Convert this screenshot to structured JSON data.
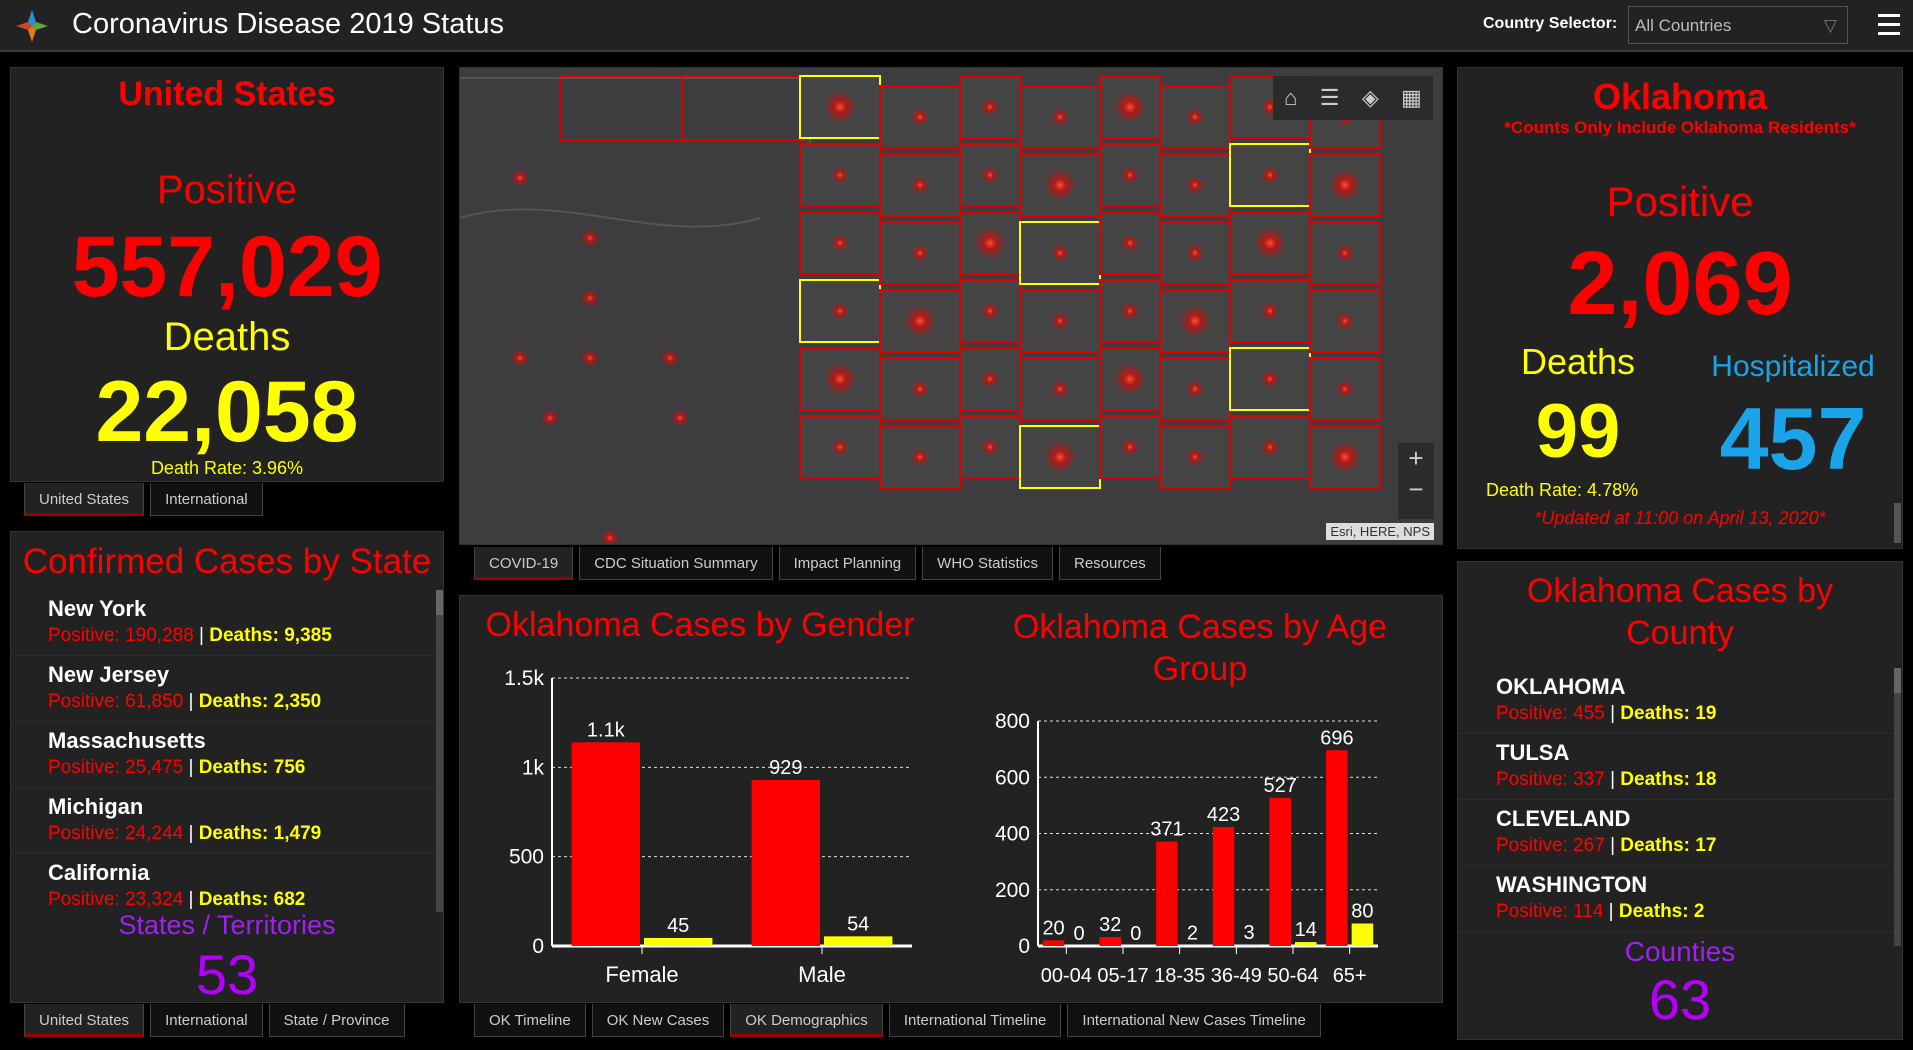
{
  "header": {
    "title": "Coronavirus Disease 2019 Status",
    "country_selector_label": "Country Selector:",
    "country_selector_value": "All Countries"
  },
  "us_panel": {
    "title": "United States",
    "positive_label": "Positive",
    "positive": "557,029",
    "deaths_label": "Deaths",
    "deaths": "22,058",
    "death_rate": "Death Rate: 3.96%",
    "tabs": [
      "United States",
      "International"
    ]
  },
  "state_panel": {
    "title": "Confirmed Cases by State",
    "items": [
      {
        "name": "New York",
        "positive": "Positive: 190,288",
        "deaths": "Deaths: 9,385"
      },
      {
        "name": "New Jersey",
        "positive": "Positive: 61,850",
        "deaths": "Deaths: 2,350"
      },
      {
        "name": "Massachusetts",
        "positive": "Positive: 25,475",
        "deaths": "Deaths: 756"
      },
      {
        "name": "Michigan",
        "positive": "Positive: 24,244",
        "deaths": "Deaths: 1,479"
      },
      {
        "name": "California",
        "positive": "Positive: 23,324",
        "deaths": "Deaths: 682"
      }
    ],
    "count_label": "States / Territories",
    "count": "53",
    "tabs": [
      "United States",
      "International",
      "State / Province"
    ]
  },
  "map": {
    "attribution": "Esri, HERE, NPS",
    "zoom_in": "+",
    "zoom_out": "−",
    "tabs": [
      "COVID-19",
      "CDC Situation Summary",
      "Impact Planning",
      "WHO Statistics",
      "Resources"
    ]
  },
  "ok_panel": {
    "title": "Oklahoma",
    "note": "*Counts Only Include Oklahoma Residents*",
    "positive_label": "Positive",
    "positive": "2,069",
    "deaths_label": "Deaths",
    "deaths": "99",
    "hosp_label": "Hospitalized",
    "hosp": "457",
    "death_rate": "Death Rate: 4.78%",
    "updated": "*Updated at 11:00 on April 13, 2020*"
  },
  "county_panel": {
    "title": "Oklahoma Cases by County",
    "items": [
      {
        "name": "OKLAHOMA",
        "positive": "Positive: 455",
        "deaths": "Deaths: 19"
      },
      {
        "name": "TULSA",
        "positive": "Positive: 337",
        "deaths": "Deaths: 18"
      },
      {
        "name": "CLEVELAND",
        "positive": "Positive: 267",
        "deaths": "Deaths: 17"
      },
      {
        "name": "WASHINGTON",
        "positive": "Positive: 114",
        "deaths": "Deaths: 2"
      }
    ],
    "count_label": "Counties",
    "count": "63"
  },
  "bottom_tabs": [
    "OK Timeline",
    "OK New Cases",
    "OK Demographics",
    "International Timeline",
    "International New Cases Timeline"
  ],
  "colors": {
    "positive": "#ff0000",
    "deaths": "#ffff00",
    "hospitalized": "#1aa3e8",
    "count": "#b400ff"
  },
  "chart_data": [
    {
      "type": "bar",
      "title": "Oklahoma Cases by Gender",
      "categories": [
        "Female",
        "Male"
      ],
      "series": [
        {
          "name": "Positive",
          "values": [
            1140,
            929
          ],
          "labels": [
            "1.1k",
            "929"
          ]
        },
        {
          "name": "Deaths",
          "values": [
            45,
            54
          ],
          "labels": [
            "45",
            "54"
          ]
        }
      ],
      "ylim": [
        0,
        1500
      ],
      "yticks": [
        0,
        500,
        1000,
        1500
      ],
      "ytick_labels": [
        "0",
        "500",
        "1k",
        "1.5k"
      ],
      "grid": true
    },
    {
      "type": "bar",
      "title": "Oklahoma Cases by Age Group",
      "categories": [
        "00-04",
        "05-17",
        "18-35",
        "36-49",
        "50-64",
        "65+"
      ],
      "series": [
        {
          "name": "Positive",
          "values": [
            20,
            32,
            371,
            423,
            527,
            696
          ]
        },
        {
          "name": "Deaths",
          "values": [
            0,
            0,
            2,
            3,
            14,
            80
          ]
        }
      ],
      "ylim": [
        0,
        800
      ],
      "yticks": [
        0,
        200,
        400,
        600,
        800
      ],
      "ytick_labels": [
        "0",
        "200",
        "400",
        "600",
        "800"
      ],
      "grid": true
    }
  ]
}
